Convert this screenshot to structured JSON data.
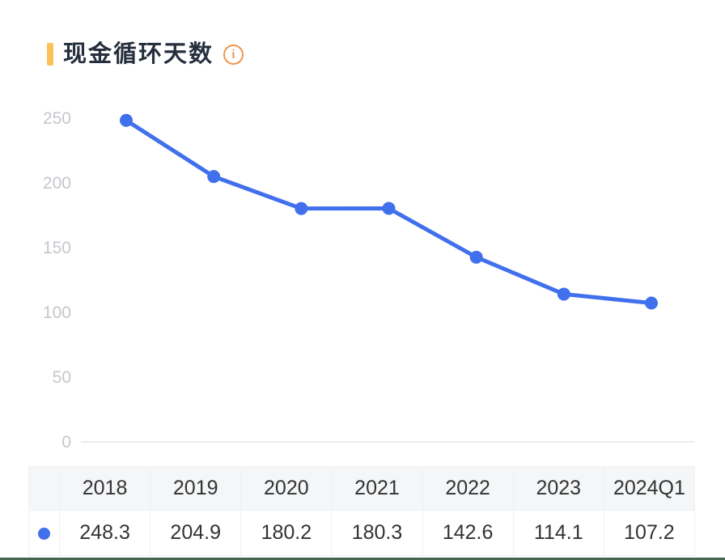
{
  "header": {
    "title": "现金循环天数",
    "info_glyph": "i"
  },
  "chart_data": {
    "type": "line",
    "title": "现金循环天数",
    "categories": [
      "2018",
      "2019",
      "2020",
      "2021",
      "2022",
      "2023",
      "2024Q1"
    ],
    "series": [
      {
        "name": "现金循环天数",
        "values": [
          248.3,
          204.9,
          180.2,
          180.3,
          142.6,
          114.1,
          107.2
        ]
      }
    ],
    "ylim": [
      0,
      250
    ],
    "yticks": [
      250,
      200,
      150,
      100,
      50,
      0
    ],
    "grid": false,
    "baseline_only": true,
    "markers": true,
    "legend_position": "table-first-column"
  },
  "table": {
    "headers": [
      "",
      "2018",
      "2019",
      "2020",
      "2021",
      "2022",
      "2023",
      "2024Q1"
    ],
    "row": {
      "legend_icon": "blue-dot",
      "values": [
        "248.3",
        "204.9",
        "180.2",
        "180.3",
        "142.6",
        "114.1",
        "107.2"
      ]
    }
  },
  "colors": {
    "accent_bar": "#FBC355",
    "title_text": "#262F3D",
    "info_icon": "#F0954D",
    "line": "#4170EC",
    "axis_label": "#C4C7CC",
    "baseline": "#ECECEC",
    "table_border": "#EEF0F2",
    "table_header_bg": "#F4F6F8",
    "table_text": "#333333",
    "bottom_bar": "#44684F"
  }
}
